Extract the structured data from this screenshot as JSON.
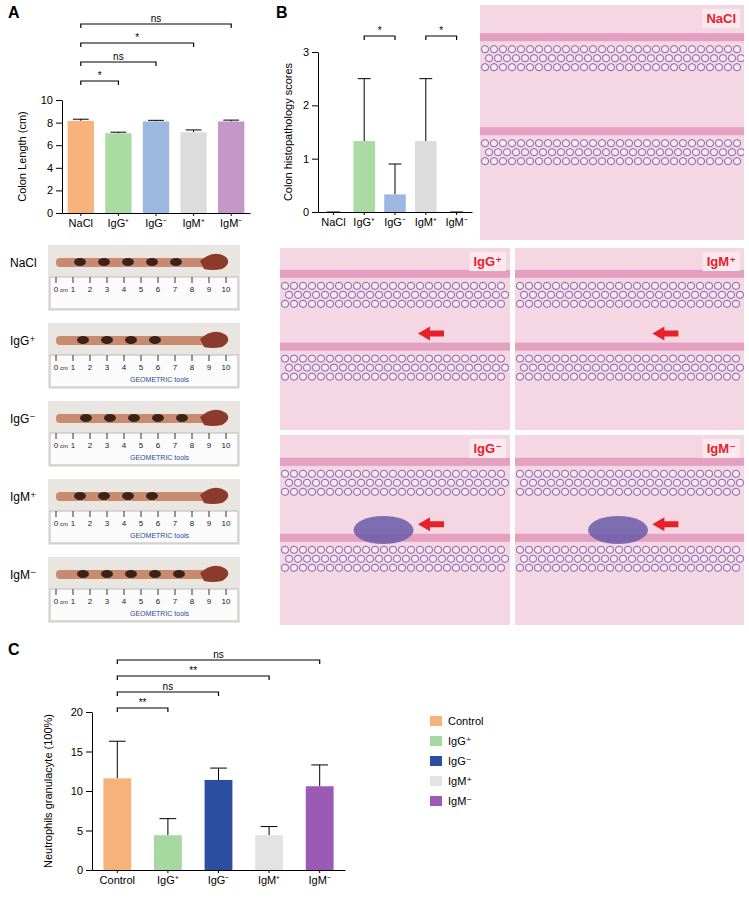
{
  "panels": [
    "A",
    "B",
    "C"
  ],
  "photos": {
    "labels": [
      "NaCl",
      "IgG⁺",
      "IgG⁻",
      "IgM⁺",
      "IgM⁻"
    ],
    "ruler_unit": "cm",
    "ruler_ticks": [
      0,
      1,
      2,
      3,
      4,
      5,
      6,
      7,
      8,
      9,
      10
    ],
    "brand": "GEOMETRIC tools"
  },
  "histology": {
    "labels": [
      "NaCl",
      "IgG⁺",
      "IgM⁺",
      "IgG⁻",
      "IgM⁻"
    ]
  },
  "chart_data": [
    {
      "type": "bar",
      "ylabel": "Colon Length (cm)",
      "categories": [
        "NaCl",
        "IgG⁺",
        "IgG⁻",
        "IgM⁺",
        "IgM⁻"
      ],
      "values": [
        8.15,
        7.05,
        8.1,
        7.15,
        8.1
      ],
      "errors": [
        0.15,
        0.1,
        0.1,
        0.2,
        0.12
      ],
      "colors": [
        "#f6b37b",
        "#a9dba3",
        "#9db8e0",
        "#dcdcdc",
        "#c597c8"
      ],
      "ylim": [
        0,
        10
      ],
      "yticks": [
        0,
        2,
        4,
        6,
        8,
        10
      ],
      "annotations": [
        {
          "from": "NaCl",
          "to": "IgM⁻",
          "label": "ns"
        },
        {
          "from": "NaCl",
          "to": "IgM⁺",
          "label": "*"
        },
        {
          "from": "NaCl",
          "to": "IgG⁻",
          "label": "ns"
        },
        {
          "from": "NaCl",
          "to": "IgG⁺",
          "label": "*"
        }
      ]
    },
    {
      "type": "bar",
      "ylabel": "Colon histopathology scores",
      "categories": [
        "NaCl",
        "IgG⁺",
        "IgG⁻",
        "IgM⁺",
        "IgM⁻"
      ],
      "values": [
        0,
        1.33,
        0.33,
        1.33,
        0
      ],
      "errors": [
        0,
        1.17,
        0.57,
        1.17,
        0
      ],
      "colors": [
        "#f6b37b",
        "#a9dba3",
        "#9db8e0",
        "#dcdcdc",
        "#c597c8"
      ],
      "ylim": [
        0,
        3
      ],
      "yticks": [
        0,
        1,
        2,
        3
      ],
      "annotations": [
        {
          "from": "IgG⁺",
          "to": "IgG⁻",
          "label": "*"
        },
        {
          "from": "IgM⁺",
          "to": "IgM⁻",
          "label": "*"
        }
      ]
    },
    {
      "type": "bar",
      "ylabel": "Neutrophils granulacyte (100%)",
      "categories": [
        "Control",
        "IgG⁺",
        "IgG⁻",
        "IgM⁺",
        "IgM⁻"
      ],
      "values": [
        11.6,
        4.4,
        11.4,
        4.4,
        10.6
      ],
      "errors": [
        4.7,
        2.1,
        1.5,
        1.1,
        2.7
      ],
      "colors": [
        "#f7b27a",
        "#a6d9a0",
        "#2c4e9e",
        "#e3e3e3",
        "#9b5bb5"
      ],
      "ylim": [
        0,
        20
      ],
      "yticks": [
        0,
        5,
        10,
        15,
        20
      ],
      "legend": "right",
      "annotations": [
        {
          "from": "Control",
          "to": "IgM⁻",
          "label": "ns"
        },
        {
          "from": "Control",
          "to": "IgM⁺",
          "label": "**"
        },
        {
          "from": "Control",
          "to": "IgG⁻",
          "label": "ns"
        },
        {
          "from": "Control",
          "to": "IgG⁺",
          "label": "**"
        }
      ]
    }
  ]
}
